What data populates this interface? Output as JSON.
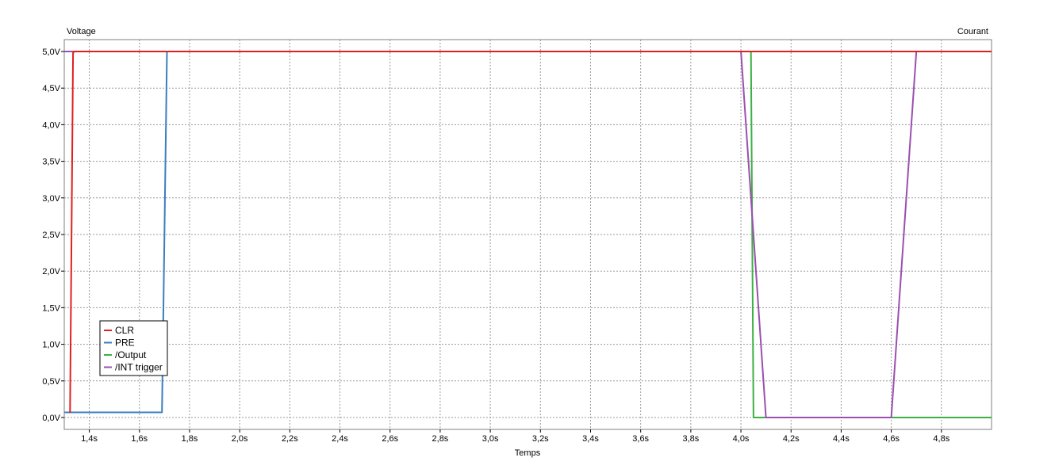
{
  "chart_data": {
    "type": "line",
    "left_axis_label": "Voltage",
    "right_axis_label": "Courant",
    "xlabel": "Temps",
    "xlim": [
      1.3,
      5.0
    ],
    "ylim": [
      -0.1,
      5.0
    ],
    "grid": true,
    "x_ticks": [
      {
        "v": 1.4,
        "label": "1,4s"
      },
      {
        "v": 1.6,
        "label": "1,6s"
      },
      {
        "v": 1.8,
        "label": "1,8s"
      },
      {
        "v": 2.0,
        "label": "2,0s"
      },
      {
        "v": 2.2,
        "label": "2,2s"
      },
      {
        "v": 2.4,
        "label": "2,4s"
      },
      {
        "v": 2.6,
        "label": "2,6s"
      },
      {
        "v": 2.8,
        "label": "2,8s"
      },
      {
        "v": 3.0,
        "label": "3,0s"
      },
      {
        "v": 3.2,
        "label": "3,2s"
      },
      {
        "v": 3.4,
        "label": "3,4s"
      },
      {
        "v": 3.6,
        "label": "3,6s"
      },
      {
        "v": 3.8,
        "label": "3,8s"
      },
      {
        "v": 4.0,
        "label": "4,0s"
      },
      {
        "v": 4.2,
        "label": "4,2s"
      },
      {
        "v": 4.4,
        "label": "4,4s"
      },
      {
        "v": 4.6,
        "label": "4,6s"
      },
      {
        "v": 4.8,
        "label": "4,8s"
      }
    ],
    "y_ticks": [
      {
        "v": 0.0,
        "label": "0,0V"
      },
      {
        "v": 0.5,
        "label": "0,5V"
      },
      {
        "v": 1.0,
        "label": "1,0V"
      },
      {
        "v": 1.5,
        "label": "1,5V"
      },
      {
        "v": 2.0,
        "label": "2,0V"
      },
      {
        "v": 2.5,
        "label": "2,5V"
      },
      {
        "v": 3.0,
        "label": "3,0V"
      },
      {
        "v": 3.5,
        "label": "3,5V"
      },
      {
        "v": 4.0,
        "label": "4,0V"
      },
      {
        "v": 4.5,
        "label": "4,5V"
      },
      {
        "v": 5.0,
        "label": "5,0V"
      }
    ],
    "legend_position": "bottom-left",
    "series": [
      {
        "name": "CLR",
        "color": "#e02020",
        "x": [
          1.3,
          1.3,
          1.3,
          1.37
        ],
        "y": [
          5.0,
          5.0,
          5.0,
          5.0
        ]
      },
      {
        "name": "PRE",
        "color": "#3a7ebf",
        "x": [
          1.3,
          1.69,
          1.71,
          5.0
        ],
        "y": [
          0.07,
          0.07,
          5.0,
          5.0
        ]
      },
      {
        "name": "/Output",
        "color": "#3cb043",
        "x": [
          1.3,
          4.04,
          4.05,
          5.0
        ],
        "y": [
          5.0,
          5.0,
          0.0,
          0.0
        ]
      },
      {
        "name": "/INT trigger",
        "color": "#9b4fb0",
        "x": [
          1.3,
          4.0,
          4.1,
          4.6,
          4.7,
          5.0
        ],
        "y": [
          5.0,
          5.0,
          0.0,
          0.0,
          5.0,
          5.0
        ]
      }
    ]
  }
}
